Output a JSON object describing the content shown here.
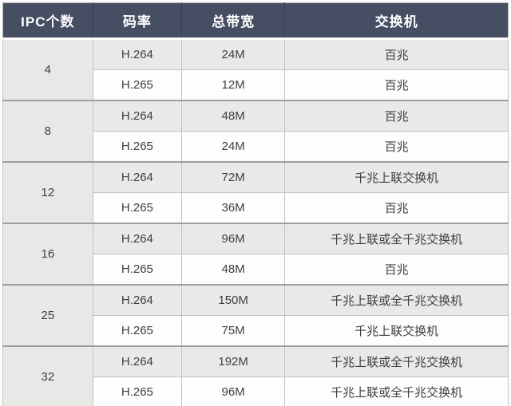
{
  "colors": {
    "header_bg": "#454e63",
    "header_text": "#ffffff",
    "row_gray": "#e9e9e7",
    "row_white": "#fdfdfd",
    "ipc_col_bg": "#e8e8e6",
    "border_dark": "#9e9e9e",
    "body_text": "#3f3f3f"
  },
  "chart_data": {
    "type": "table",
    "columns": [
      "IPC个数",
      "码率",
      "总带宽",
      "交换机"
    ],
    "groups": [
      {
        "ipc": "4",
        "rows": [
          {
            "codec": "H.264",
            "bandwidth": "24M",
            "switch": "百兆"
          },
          {
            "codec": "H.265",
            "bandwidth": "12M",
            "switch": "百兆"
          }
        ]
      },
      {
        "ipc": "8",
        "rows": [
          {
            "codec": "H.264",
            "bandwidth": "48M",
            "switch": "百兆"
          },
          {
            "codec": "H.265",
            "bandwidth": "24M",
            "switch": "百兆"
          }
        ]
      },
      {
        "ipc": "12",
        "rows": [
          {
            "codec": "H.264",
            "bandwidth": "72M",
            "switch": "千兆上联交换机"
          },
          {
            "codec": "H.265",
            "bandwidth": "36M",
            "switch": "百兆"
          }
        ]
      },
      {
        "ipc": "16",
        "rows": [
          {
            "codec": "H.264",
            "bandwidth": "96M",
            "switch": "千兆上联或全千兆交换机"
          },
          {
            "codec": "H.265",
            "bandwidth": "48M",
            "switch": "百兆"
          }
        ]
      },
      {
        "ipc": "25",
        "rows": [
          {
            "codec": "H.264",
            "bandwidth": "150M",
            "switch": "千兆上联或全千兆交换机"
          },
          {
            "codec": "H.265",
            "bandwidth": "75M",
            "switch": "千兆上联交换机"
          }
        ]
      },
      {
        "ipc": "32",
        "rows": [
          {
            "codec": "H.264",
            "bandwidth": "192M",
            "switch": "千兆上联或全千兆交换机"
          },
          {
            "codec": "H.265",
            "bandwidth": "96M",
            "switch": "千兆上联或全千兆交换机"
          }
        ]
      }
    ]
  }
}
